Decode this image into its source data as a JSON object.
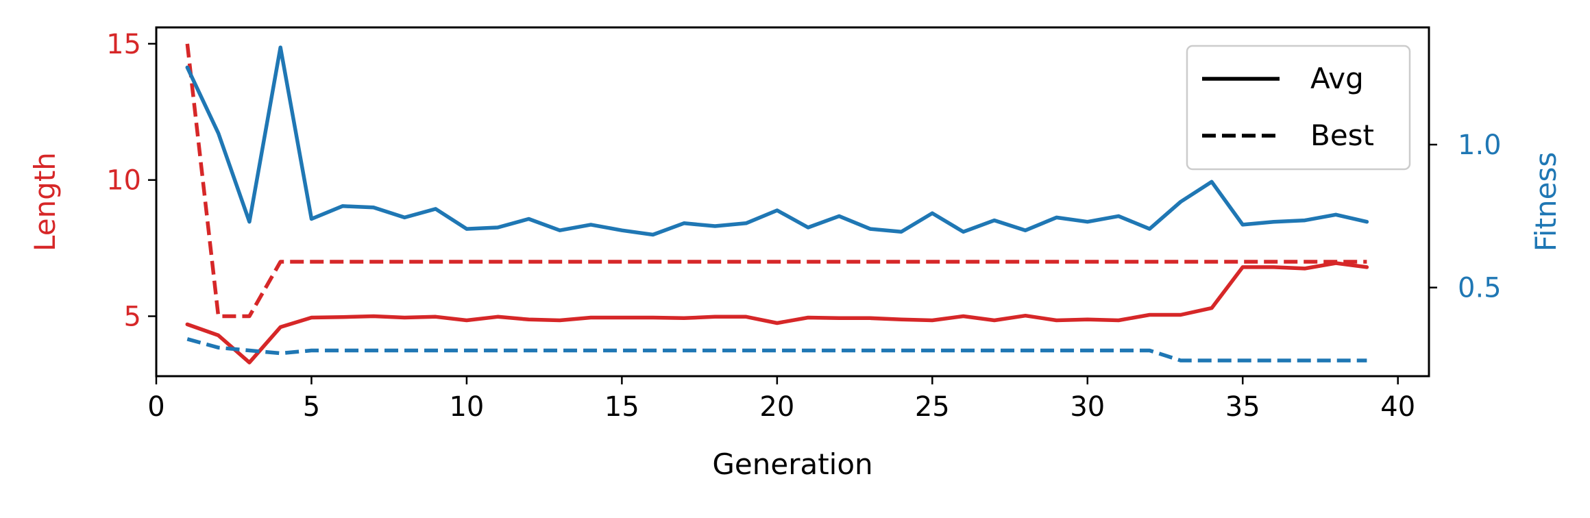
{
  "chart_data": {
    "type": "line",
    "xlabel": "Generation",
    "ylabel_left": "Length",
    "ylabel_right": "Fitness",
    "xlim": [
      0,
      41
    ],
    "ylim_left": [
      2.8,
      15.6
    ],
    "ylim_right": [
      0.19,
      1.41
    ],
    "xticks": [
      0,
      5,
      10,
      15,
      20,
      25,
      30,
      35,
      40
    ],
    "yticks_left": [
      5,
      10,
      15
    ],
    "yticks_right": [
      0.5,
      1.0
    ],
    "grid": false,
    "legend": {
      "position": "top-right",
      "entries": [
        {
          "label": "Avg",
          "style": "solid"
        },
        {
          "label": "Best",
          "style": "dashed"
        }
      ]
    },
    "colors": {
      "length": "#d62728",
      "fitness": "#1f77b4",
      "axis": "#000000"
    },
    "x": [
      1,
      2,
      3,
      4,
      5,
      6,
      7,
      8,
      9,
      10,
      11,
      12,
      13,
      14,
      15,
      16,
      17,
      18,
      19,
      20,
      21,
      22,
      23,
      24,
      25,
      26,
      27,
      28,
      29,
      30,
      31,
      32,
      33,
      34,
      35,
      36,
      37,
      38,
      39
    ],
    "series": [
      {
        "axis": "left",
        "style": "solid",
        "color": "#d62728",
        "legend_label": "Avg",
        "values": [
          4.7,
          4.3,
          3.3,
          4.6,
          4.95,
          4.97,
          5.0,
          4.95,
          4.98,
          4.85,
          4.98,
          4.88,
          4.85,
          4.95,
          4.95,
          4.95,
          4.93,
          4.98,
          4.98,
          4.75,
          4.95,
          4.93,
          4.93,
          4.88,
          4.85,
          5.0,
          4.85,
          5.02,
          4.85,
          4.88,
          4.85,
          5.05,
          5.05,
          5.3,
          6.8,
          6.8,
          6.75,
          6.95,
          6.8
        ]
      },
      {
        "axis": "left",
        "style": "dashed",
        "color": "#d62728",
        "legend_label": "Best",
        "values": [
          15,
          5,
          5,
          7,
          7,
          7,
          7,
          7,
          7,
          7,
          7,
          7,
          7,
          7,
          7,
          7,
          7,
          7,
          7,
          7,
          7,
          7,
          7,
          7,
          7,
          7,
          7,
          7,
          7,
          7,
          7,
          7,
          7,
          7,
          7,
          7,
          7,
          7,
          7
        ]
      },
      {
        "axis": "right",
        "style": "solid",
        "color": "#1f77b4",
        "legend_label": "Avg",
        "values": [
          1.27,
          1.04,
          0.73,
          1.34,
          0.74,
          0.785,
          0.78,
          0.745,
          0.775,
          0.705,
          0.71,
          0.74,
          0.7,
          0.72,
          0.7,
          0.685,
          0.725,
          0.715,
          0.725,
          0.77,
          0.71,
          0.75,
          0.705,
          0.695,
          0.76,
          0.695,
          0.735,
          0.7,
          0.745,
          0.73,
          0.75,
          0.705,
          0.8,
          0.87,
          0.72,
          0.73,
          0.735,
          0.755,
          0.73
        ]
      },
      {
        "axis": "right",
        "style": "dashed",
        "color": "#1f77b4",
        "legend_label": "Best",
        "values": [
          0.32,
          0.29,
          0.28,
          0.27,
          0.28,
          0.28,
          0.28,
          0.28,
          0.28,
          0.28,
          0.28,
          0.28,
          0.28,
          0.28,
          0.28,
          0.28,
          0.28,
          0.28,
          0.28,
          0.28,
          0.28,
          0.28,
          0.28,
          0.28,
          0.28,
          0.28,
          0.28,
          0.28,
          0.28,
          0.28,
          0.28,
          0.28,
          0.245,
          0.245,
          0.245,
          0.245,
          0.245,
          0.245,
          0.245
        ]
      }
    ]
  }
}
